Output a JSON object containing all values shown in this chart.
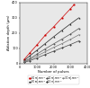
{
  "title": "",
  "xlabel": "Number of pulses",
  "ylabel": "Ablation depth (µm)",
  "xlim": [
    0,
    4000
  ],
  "ylim": [
    0,
    400
  ],
  "xticks": [
    0,
    1000,
    2000,
    3000,
    4000
  ],
  "yticks": [
    0,
    100,
    200,
    300,
    400
  ],
  "series": [
    {
      "label": "80 mJ.mm⁻²",
      "color": "#cc0000",
      "marker": "s",
      "points": [
        [
          250,
          25
        ],
        [
          600,
          70
        ],
        [
          1000,
          120
        ],
        [
          1500,
          185
        ],
        [
          2000,
          240
        ],
        [
          2500,
          300
        ],
        [
          3000,
          360
        ],
        [
          3200,
          385
        ]
      ],
      "line_color": "#cc0000"
    },
    {
      "label": "60 mJ.mm⁻²",
      "color": "#222222",
      "marker": "^",
      "points": [
        [
          250,
          18
        ],
        [
          600,
          50
        ],
        [
          1000,
          85
        ],
        [
          1500,
          130
        ],
        [
          2000,
          175
        ],
        [
          2500,
          218
        ],
        [
          3000,
          260
        ],
        [
          3500,
          300
        ]
      ],
      "line_color": "#222222"
    },
    {
      "label": "40 mJ.mm⁻²",
      "color": "#555555",
      "marker": "o",
      "points": [
        [
          250,
          12
        ],
        [
          600,
          32
        ],
        [
          1000,
          60
        ],
        [
          1500,
          95
        ],
        [
          2000,
          128
        ],
        [
          2500,
          160
        ],
        [
          3000,
          193
        ],
        [
          3500,
          230
        ]
      ],
      "line_color": "#555555"
    },
    {
      "label": "15 mJ.mm⁻²",
      "color": "#444444",
      "marker": "D",
      "points": [
        [
          250,
          7
        ],
        [
          600,
          18
        ],
        [
          1000,
          35
        ],
        [
          1500,
          58
        ],
        [
          2000,
          80
        ],
        [
          2500,
          102
        ],
        [
          3000,
          124
        ],
        [
          3500,
          148
        ]
      ],
      "line_color": "#444444"
    },
    {
      "label": "30 mJ.mm⁻²",
      "color": "#777777",
      "marker": "v",
      "points": [
        [
          250,
          10
        ],
        [
          600,
          25
        ],
        [
          1000,
          48
        ],
        [
          1500,
          76
        ],
        [
          2000,
          105
        ],
        [
          2500,
          130
        ],
        [
          3000,
          158
        ],
        [
          3500,
          188
        ]
      ],
      "line_color": "#777777"
    }
  ],
  "background_color": "#e8e8e8",
  "grid": false,
  "legend_ncol": 3,
  "figsize": [
    1.0,
    0.98
  ],
  "dpi": 100
}
